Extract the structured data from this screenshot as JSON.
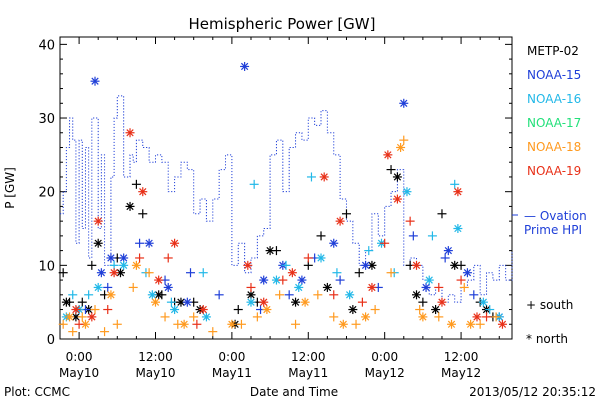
{
  "chart_data": {
    "type": "scatter",
    "title": "Hemispheric Power [GW]",
    "xlabel": "Date and Time",
    "ylabel": "P [GW]",
    "xlim": [
      "2013-05-09T21:00",
      "2013-05-12T20:00"
    ],
    "ylim": [
      0,
      41
    ],
    "yticks": [
      0,
      10,
      20,
      30,
      40
    ],
    "xticks": [
      {
        "at": "2013-05-10T00:00",
        "time": "0:00",
        "date": "May10"
      },
      {
        "at": "2013-05-10T12:00",
        "time": "12:00",
        "date": "May10"
      },
      {
        "at": "2013-05-11T00:00",
        "time": "0:00",
        "date": "May11"
      },
      {
        "at": "2013-05-11T12:00",
        "time": "12:00",
        "date": "May11"
      },
      {
        "at": "2013-05-12T00:00",
        "time": "0:00",
        "date": "May12"
      },
      {
        "at": "2013-05-12T12:00",
        "time": "12:00",
        "date": "May12"
      }
    ],
    "grid": false,
    "legend_position": "right",
    "marker_legend": {
      "south": "+ south",
      "north": "* north"
    },
    "ovation": {
      "label_line1": "— Ovation",
      "label_line2": "Prime HPI",
      "color": "#1f3fd8",
      "right_marker_value": 16.7,
      "x": [
        "2013-05-09T21:00",
        "2013-05-09T21:30",
        "2013-05-09T22:00",
        "2013-05-09T22:30",
        "2013-05-09T23:00",
        "2013-05-09T23:30",
        "2013-05-10T00:00",
        "2013-05-10T00:30",
        "2013-05-10T01:00",
        "2013-05-10T01:30",
        "2013-05-10T02:00",
        "2013-05-10T03:00",
        "2013-05-10T03:30",
        "2013-05-10T04:00",
        "2013-05-10T05:00",
        "2013-05-10T05:30",
        "2013-05-10T06:00",
        "2013-05-10T07:00",
        "2013-05-10T08:00",
        "2013-05-10T08:30",
        "2013-05-10T09:00",
        "2013-05-10T10:00",
        "2013-05-10T11:00",
        "2013-05-10T12:00",
        "2013-05-10T13:00",
        "2013-05-10T14:00",
        "2013-05-10T15:00",
        "2013-05-10T16:00",
        "2013-05-10T17:00",
        "2013-05-10T18:00",
        "2013-05-10T19:00",
        "2013-05-10T20:00",
        "2013-05-10T21:00",
        "2013-05-10T22:00",
        "2013-05-10T23:00",
        "2013-05-11T00:00",
        "2013-05-11T01:00",
        "2013-05-11T02:00",
        "2013-05-11T03:00",
        "2013-05-11T04:00",
        "2013-05-11T05:00",
        "2013-05-11T06:00",
        "2013-05-11T07:00",
        "2013-05-11T08:00",
        "2013-05-11T09:00",
        "2013-05-11T10:00",
        "2013-05-11T11:00",
        "2013-05-11T12:00",
        "2013-05-11T13:00",
        "2013-05-11T14:00",
        "2013-05-11T15:00",
        "2013-05-11T16:00",
        "2013-05-11T17:00",
        "2013-05-11T18:00",
        "2013-05-11T19:00",
        "2013-05-11T20:00",
        "2013-05-11T21:00",
        "2013-05-11T22:00",
        "2013-05-11T23:00",
        "2013-05-12T00:00",
        "2013-05-12T01:00",
        "2013-05-12T02:00",
        "2013-05-12T03:00",
        "2013-05-12T04:00",
        "2013-05-12T05:00",
        "2013-05-12T06:00",
        "2013-05-12T07:00",
        "2013-05-12T08:00",
        "2013-05-12T09:00",
        "2013-05-12T10:00",
        "2013-05-12T11:00",
        "2013-05-12T12:00",
        "2013-05-12T13:00",
        "2013-05-12T14:00",
        "2013-05-12T15:00",
        "2013-05-12T16:00",
        "2013-05-12T17:00",
        "2013-05-12T18:00",
        "2013-05-12T19:00",
        "2013-05-12T20:00"
      ],
      "y": [
        17,
        20,
        26,
        30,
        27,
        13,
        27,
        15,
        26,
        11,
        30,
        15,
        25,
        10,
        22,
        30,
        33,
        22,
        25,
        24,
        27,
        26,
        24,
        25,
        24,
        20,
        22,
        24,
        23,
        17,
        19,
        16,
        19,
        23,
        25,
        10,
        13,
        9,
        11,
        14,
        15,
        25,
        27,
        20,
        26,
        28,
        27,
        30,
        29,
        31,
        28,
        25,
        19,
        16,
        13,
        10,
        12,
        17,
        14,
        18,
        20,
        23,
        10,
        11,
        10,
        8,
        6,
        7,
        5,
        6,
        5,
        7,
        8,
        10,
        6,
        9,
        8,
        10,
        8,
        12
      ]
    },
    "series": [
      {
        "name": "METP-02",
        "color": "#000000",
        "marker": "+",
        "points": [
          [
            "2013-05-09T21:30",
            9
          ],
          [
            "2013-05-09T22:30",
            5
          ],
          [
            "2013-05-10T00:00",
            4
          ],
          [
            "2013-05-10T00:30",
            5
          ],
          [
            "2013-05-10T02:00",
            10
          ],
          [
            "2013-05-10T04:00",
            6
          ],
          [
            "2013-05-10T06:00",
            11
          ],
          [
            "2013-05-10T09:00",
            21
          ],
          [
            "2013-05-10T10:00",
            17
          ],
          [
            "2013-05-10T13:00",
            6
          ],
          [
            "2013-05-10T15:00",
            5
          ],
          [
            "2013-05-10T18:00",
            5
          ],
          [
            "2013-05-11T01:00",
            4
          ],
          [
            "2013-05-11T04:00",
            5
          ],
          [
            "2013-05-11T07:00",
            12
          ],
          [
            "2013-05-11T12:00",
            10
          ],
          [
            "2013-05-11T14:00",
            14
          ],
          [
            "2013-05-11T18:00",
            17
          ],
          [
            "2013-05-11T20:00",
            9
          ],
          [
            "2013-05-12T01:00",
            23
          ],
          [
            "2013-05-12T04:00",
            10
          ],
          [
            "2013-05-12T06:00",
            5
          ],
          [
            "2013-05-12T09:00",
            17
          ],
          [
            "2013-05-12T12:00",
            10
          ],
          [
            "2013-05-12T15:00",
            5
          ],
          [
            "2013-05-12T17:00",
            3
          ]
        ]
      },
      {
        "name": "METP-02",
        "color": "#000000",
        "marker": "*",
        "points": [
          [
            "2013-05-09T22:00",
            5
          ],
          [
            "2013-05-09T23:30",
            3
          ],
          [
            "2013-05-10T01:30",
            4
          ],
          [
            "2013-05-10T03:00",
            13
          ],
          [
            "2013-05-10T06:30",
            9
          ],
          [
            "2013-05-10T08:00",
            18
          ],
          [
            "2013-05-10T12:30",
            6
          ],
          [
            "2013-05-10T16:00",
            5
          ],
          [
            "2013-05-10T19:00",
            4
          ],
          [
            "2013-05-11T00:30",
            2
          ],
          [
            "2013-05-11T03:00",
            6
          ],
          [
            "2013-05-11T06:00",
            12
          ],
          [
            "2013-05-11T10:00",
            5
          ],
          [
            "2013-05-11T15:00",
            7
          ],
          [
            "2013-05-11T19:00",
            4
          ],
          [
            "2013-05-11T22:00",
            10
          ],
          [
            "2013-05-12T02:00",
            22
          ],
          [
            "2013-05-12T05:00",
            6
          ],
          [
            "2013-05-12T08:00",
            4
          ],
          [
            "2013-05-12T11:00",
            10
          ],
          [
            "2013-05-12T16:00",
            4
          ]
        ]
      },
      {
        "name": "NOAA-15",
        "color": "#1f3fd8",
        "marker": "*",
        "points": [
          [
            "2013-05-10T02:30",
            35
          ],
          [
            "2013-05-10T03:30",
            9
          ],
          [
            "2013-05-10T05:00",
            11
          ],
          [
            "2013-05-10T07:00",
            11
          ],
          [
            "2013-05-10T11:00",
            13
          ],
          [
            "2013-05-10T14:00",
            7
          ],
          [
            "2013-05-10T17:00",
            5
          ],
          [
            "2013-05-11T02:00",
            37
          ],
          [
            "2013-05-11T05:00",
            8
          ],
          [
            "2013-05-11T08:00",
            10
          ],
          [
            "2013-05-11T11:00",
            8
          ],
          [
            "2013-05-11T16:00",
            13
          ],
          [
            "2013-05-11T21:00",
            10
          ],
          [
            "2013-05-12T03:00",
            32
          ],
          [
            "2013-05-12T06:30",
            7
          ],
          [
            "2013-05-12T10:00",
            12
          ],
          [
            "2013-05-12T13:00",
            9
          ],
          [
            "2013-05-12T18:00",
            3
          ]
        ]
      },
      {
        "name": "NOAA-15",
        "color": "#1f3fd8",
        "marker": "+",
        "points": [
          [
            "2013-05-10T01:00",
            4
          ],
          [
            "2013-05-10T04:30",
            7
          ],
          [
            "2013-05-10T09:30",
            13
          ],
          [
            "2013-05-10T13:30",
            8
          ],
          [
            "2013-05-10T17:30",
            9
          ],
          [
            "2013-05-10T22:00",
            6
          ],
          [
            "2013-05-11T04:30",
            4
          ],
          [
            "2013-05-11T09:00",
            6
          ],
          [
            "2013-05-11T13:00",
            11
          ],
          [
            "2013-05-11T17:00",
            8
          ],
          [
            "2013-05-11T23:00",
            7
          ],
          [
            "2013-05-12T04:30",
            14
          ],
          [
            "2013-05-12T09:30",
            11
          ],
          [
            "2013-05-12T14:00",
            6
          ]
        ]
      },
      {
        "name": "NOAA-16",
        "color": "#22b8e8",
        "marker": "*",
        "points": [
          [
            "2013-05-09T22:00",
            3
          ],
          [
            "2013-05-10T00:00",
            4
          ],
          [
            "2013-05-10T03:00",
            7
          ],
          [
            "2013-05-10T07:00",
            10
          ],
          [
            "2013-05-10T11:30",
            6
          ],
          [
            "2013-05-10T15:00",
            4
          ],
          [
            "2013-05-10T20:00",
            3
          ],
          [
            "2013-05-11T03:00",
            5
          ],
          [
            "2013-05-11T07:00",
            8
          ],
          [
            "2013-05-11T10:30",
            7
          ],
          [
            "2013-05-11T14:00",
            11
          ],
          [
            "2013-05-11T18:30",
            6
          ],
          [
            "2013-05-11T23:30",
            13
          ],
          [
            "2013-05-12T03:30",
            20
          ],
          [
            "2013-05-12T07:00",
            8
          ],
          [
            "2013-05-12T11:30",
            15
          ],
          [
            "2013-05-12T15:30",
            5
          ],
          [
            "2013-05-12T18:00",
            3
          ]
        ]
      },
      {
        "name": "NOAA-16",
        "color": "#22b8e8",
        "marker": "+",
        "points": [
          [
            "2013-05-09T23:00",
            6
          ],
          [
            "2013-05-10T01:30",
            6
          ],
          [
            "2013-05-10T05:30",
            10
          ],
          [
            "2013-05-10T10:30",
            9
          ],
          [
            "2013-05-10T14:30",
            5
          ],
          [
            "2013-05-10T19:30",
            9
          ],
          [
            "2013-05-11T03:30",
            21
          ],
          [
            "2013-05-11T08:30",
            10
          ],
          [
            "2013-05-11T12:30",
            22
          ],
          [
            "2013-05-11T16:30",
            9
          ],
          [
            "2013-05-11T21:30",
            12
          ],
          [
            "2013-05-12T01:30",
            9
          ],
          [
            "2013-05-12T07:30",
            14
          ],
          [
            "2013-05-12T11:00",
            21
          ],
          [
            "2013-05-12T16:30",
            4
          ]
        ]
      },
      {
        "name": "NOAA-17",
        "color": "#22e07a",
        "marker": "*",
        "points": []
      },
      {
        "name": "NOAA-18",
        "color": "#ff9a1f",
        "marker": "+",
        "points": [
          [
            "2013-05-09T21:30",
            2
          ],
          [
            "2013-05-09T23:00",
            1
          ],
          [
            "2013-05-10T00:30",
            3
          ],
          [
            "2013-05-10T02:30",
            4
          ],
          [
            "2013-05-10T04:00",
            1
          ],
          [
            "2013-05-10T06:00",
            2
          ],
          [
            "2013-05-10T08:30",
            7
          ],
          [
            "2013-05-10T11:00",
            9
          ],
          [
            "2013-05-10T13:30",
            3
          ],
          [
            "2013-05-10T15:30",
            2
          ],
          [
            "2013-05-10T18:00",
            3
          ],
          [
            "2013-05-10T21:00",
            1
          ],
          [
            "2013-05-11T01:30",
            2
          ],
          [
            "2013-05-11T04:00",
            3
          ],
          [
            "2013-05-11T07:30",
            6
          ],
          [
            "2013-05-11T10:00",
            2
          ],
          [
            "2013-05-11T13:30",
            6
          ],
          [
            "2013-05-11T16:00",
            3
          ],
          [
            "2013-05-11T19:30",
            2
          ],
          [
            "2013-05-11T22:30",
            4
          ],
          [
            "2013-05-12T01:00",
            9
          ],
          [
            "2013-05-12T03:00",
            27
          ],
          [
            "2013-05-12T05:30",
            4
          ],
          [
            "2013-05-12T08:30",
            3
          ],
          [
            "2013-05-12T12:30",
            7
          ],
          [
            "2013-05-12T15:00",
            2
          ],
          [
            "2013-05-12T17:30",
            3
          ]
        ]
      },
      {
        "name": "NOAA-18",
        "color": "#ff9a1f",
        "marker": "*",
        "points": [
          [
            "2013-05-09T22:30",
            3
          ],
          [
            "2013-05-10T01:00",
            2
          ],
          [
            "2013-05-10T05:00",
            6
          ],
          [
            "2013-05-10T09:00",
            10
          ],
          [
            "2013-05-10T12:00",
            5
          ],
          [
            "2013-05-10T16:30",
            2
          ],
          [
            "2013-05-11T00:00",
            2
          ],
          [
            "2013-05-11T05:30",
            4
          ],
          [
            "2013-05-11T11:30",
            5
          ],
          [
            "2013-05-11T17:30",
            2
          ],
          [
            "2013-05-11T21:00",
            3
          ],
          [
            "2013-05-12T02:30",
            26
          ],
          [
            "2013-05-12T06:00",
            3
          ],
          [
            "2013-05-12T10:30",
            2
          ],
          [
            "2013-05-12T13:30",
            2
          ]
        ]
      },
      {
        "name": "NOAA-19",
        "color": "#e83018",
        "marker": "*",
        "points": [
          [
            "2013-05-09T23:30",
            4
          ],
          [
            "2013-05-10T02:00",
            3
          ],
          [
            "2013-05-10T03:00",
            16
          ],
          [
            "2013-05-10T05:30",
            9
          ],
          [
            "2013-05-10T08:00",
            28
          ],
          [
            "2013-05-10T10:00",
            20
          ],
          [
            "2013-05-10T12:30",
            8
          ],
          [
            "2013-05-10T15:00",
            13
          ],
          [
            "2013-05-10T19:30",
            4
          ],
          [
            "2013-05-11T02:30",
            10
          ],
          [
            "2013-05-11T05:00",
            5
          ],
          [
            "2013-05-11T09:30",
            9
          ],
          [
            "2013-05-11T14:30",
            22
          ],
          [
            "2013-05-11T17:00",
            16
          ],
          [
            "2013-05-11T22:00",
            7
          ],
          [
            "2013-05-12T00:30",
            25
          ],
          [
            "2013-05-12T02:00",
            19
          ],
          [
            "2013-05-12T05:00",
            10
          ],
          [
            "2013-05-12T09:00",
            5
          ],
          [
            "2013-05-12T11:30",
            20
          ],
          [
            "2013-05-12T14:30",
            3
          ],
          [
            "2013-05-12T18:30",
            2
          ]
        ]
      },
      {
        "name": "NOAA-19",
        "color": "#e83018",
        "marker": "+",
        "points": [
          [
            "2013-05-10T00:00",
            2
          ],
          [
            "2013-05-10T04:30",
            4
          ],
          [
            "2013-05-10T09:30",
            11
          ],
          [
            "2013-05-10T14:00",
            11
          ],
          [
            "2013-05-10T18:30",
            2
          ],
          [
            "2013-05-11T03:00",
            7
          ],
          [
            "2013-05-11T08:00",
            8
          ],
          [
            "2013-05-11T12:00",
            11
          ],
          [
            "2013-05-11T16:00",
            6
          ],
          [
            "2013-05-11T20:30",
            5
          ],
          [
            "2013-05-12T00:00",
            13
          ],
          [
            "2013-05-12T04:00",
            16
          ],
          [
            "2013-05-12T08:30",
            7
          ],
          [
            "2013-05-12T12:00",
            8
          ],
          [
            "2013-05-12T16:00",
            3
          ]
        ]
      }
    ]
  },
  "legend": [
    {
      "label": "METP-02",
      "color": "#000000"
    },
    {
      "label": "NOAA-15",
      "color": "#1f3fd8"
    },
    {
      "label": "NOAA-16",
      "color": "#22b8e8"
    },
    {
      "label": "NOAA-17",
      "color": "#22e07a"
    },
    {
      "label": "NOAA-18",
      "color": "#ff9a1f"
    },
    {
      "label": "NOAA-19",
      "color": "#e83018"
    }
  ],
  "footer": {
    "plot_credit": "Plot: CCMC",
    "timestamp": "2013/05/12 20:35:12"
  }
}
